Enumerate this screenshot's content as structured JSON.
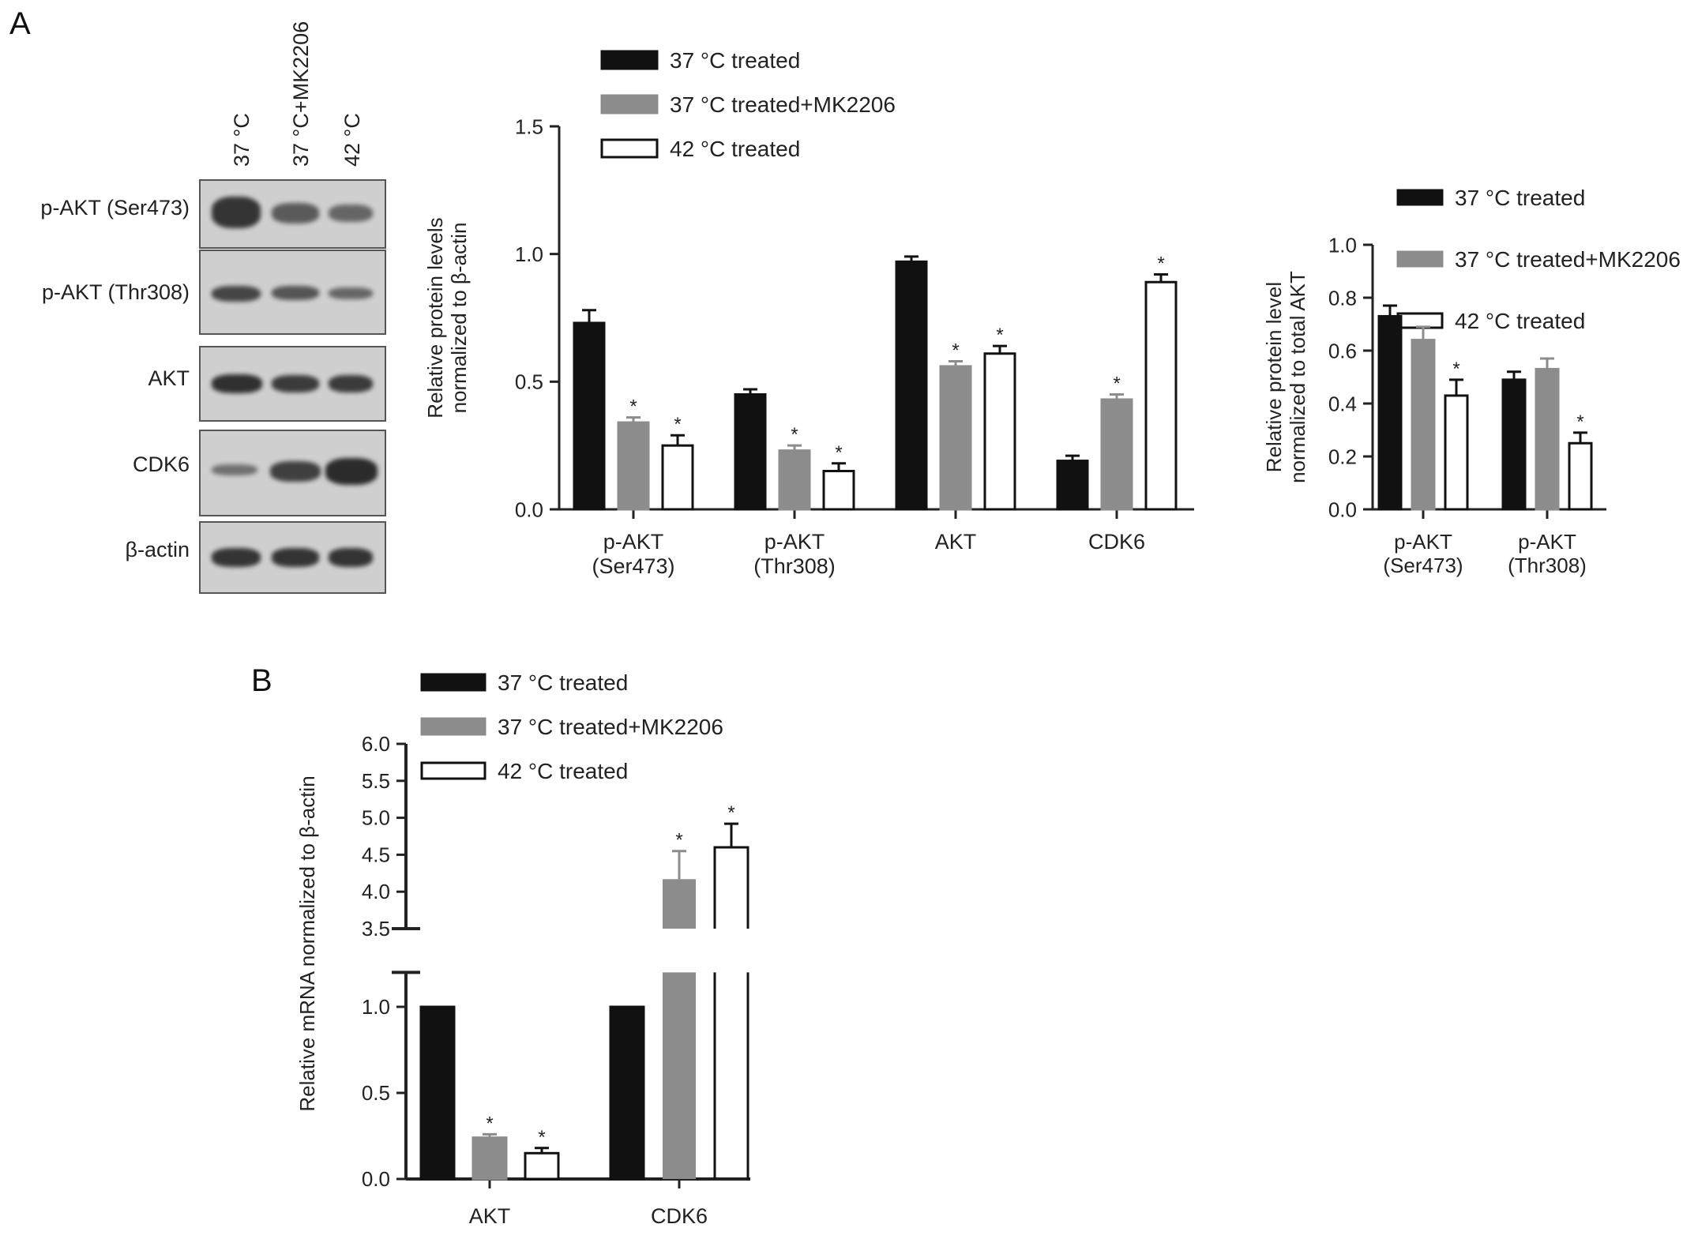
{
  "panel_letters": {
    "a": "A",
    "b": "B"
  },
  "blot": {
    "lanes": [
      "37 °C",
      "37 °C+MK2206",
      "42 °C"
    ],
    "rows": [
      {
        "label": "p-AKT (Ser473)",
        "intensity": [
          0.9,
          0.55,
          0.45
        ]
      },
      {
        "label": "p-AKT (Thr308)",
        "intensity": [
          0.75,
          0.6,
          0.45
        ]
      },
      {
        "label": "AKT",
        "intensity": [
          0.95,
          0.85,
          0.85
        ]
      },
      {
        "label": "CDK6",
        "intensity": [
          0.35,
          0.8,
          1.0
        ]
      },
      {
        "label": "β-actin",
        "intensity": [
          0.9,
          0.9,
          0.9
        ]
      }
    ]
  },
  "legend": [
    "37 °C treated",
    "37 °C treated+MK2206",
    "42 °C treated"
  ],
  "colors": {
    "s1": "#111111",
    "s2": "#8c8c8c",
    "s3": "#ffffff",
    "axis": "#222222",
    "blot_bg": "#cfcfcf",
    "band": "#2b2b2b"
  },
  "chart_data": [
    {
      "type": "bar",
      "categories": [
        "p-AKT\n(Ser473)",
        "p-AKT\n(Thr308)",
        "AKT",
        "CDK6"
      ],
      "series": [
        {
          "name": "37 °C treated",
          "values": [
            0.73,
            0.45,
            0.97,
            0.19
          ],
          "errors": [
            0.05,
            0.02,
            0.02,
            0.02
          ],
          "sig": [
            false,
            false,
            false,
            false
          ]
        },
        {
          "name": "37 °C treated+MK2206",
          "values": [
            0.34,
            0.23,
            0.56,
            0.43
          ],
          "errors": [
            0.02,
            0.02,
            0.02,
            0.02
          ],
          "sig": [
            true,
            true,
            true,
            true
          ]
        },
        {
          "name": "42 °C treated",
          "values": [
            0.25,
            0.15,
            0.61,
            0.89
          ],
          "errors": [
            0.04,
            0.03,
            0.03,
            0.03
          ],
          "sig": [
            true,
            true,
            true,
            true
          ]
        }
      ],
      "ylabel": "Relative protein levels\nnormalized to β-actin",
      "ylim": [
        0,
        1.5
      ],
      "yticks": [
        "0.0",
        "0.5",
        "1.0",
        "1.5"
      ],
      "star": "*"
    },
    {
      "type": "bar",
      "categories": [
        "p-AKT\n(Ser473)",
        "p-AKT\n(Thr308)"
      ],
      "series": [
        {
          "name": "37 °C treated",
          "values": [
            0.73,
            0.49
          ],
          "errors": [
            0.04,
            0.03
          ],
          "sig": [
            false,
            false
          ]
        },
        {
          "name": "37 °C treated+MK2206",
          "values": [
            0.64,
            0.53
          ],
          "errors": [
            0.05,
            0.04
          ],
          "sig": [
            false,
            false
          ]
        },
        {
          "name": "42 °C treated",
          "values": [
            0.43,
            0.25
          ],
          "errors": [
            0.06,
            0.04
          ],
          "sig": [
            true,
            true
          ]
        }
      ],
      "ylabel": "Relative protein level\nnormalized to total AKT",
      "ylim": [
        0,
        1.0
      ],
      "yticks": [
        "0.0",
        "0.2",
        "0.4",
        "0.6",
        "0.8",
        "1.0"
      ],
      "star": "*"
    },
    {
      "type": "bar",
      "categories": [
        "AKT",
        "CDK6"
      ],
      "series": [
        {
          "name": "37 °C treated",
          "values": [
            1.0,
            1.0
          ],
          "errors": [
            0,
            0
          ],
          "sig": [
            false,
            false
          ]
        },
        {
          "name": "37 °C treated+MK2206",
          "values": [
            0.24,
            4.17
          ],
          "errors": [
            0.02,
            0.38
          ],
          "sig": [
            true,
            true
          ]
        },
        {
          "name": "42 °C treated",
          "values": [
            0.15,
            4.6
          ],
          "errors": [
            0.03,
            0.32
          ],
          "sig": [
            true,
            true
          ]
        }
      ],
      "ylabel": "Relative mRNA normalized to β-actin",
      "broken_axis": {
        "lower": [
          0,
          1.2
        ],
        "upper": [
          3.5,
          6.0
        ]
      },
      "yticks_lower": [
        "0.0",
        "0.5",
        "1.0"
      ],
      "yticks_upper": [
        "3.5",
        "4.0",
        "4.5",
        "5.0",
        "5.5",
        "6.0"
      ],
      "star": "*"
    }
  ]
}
